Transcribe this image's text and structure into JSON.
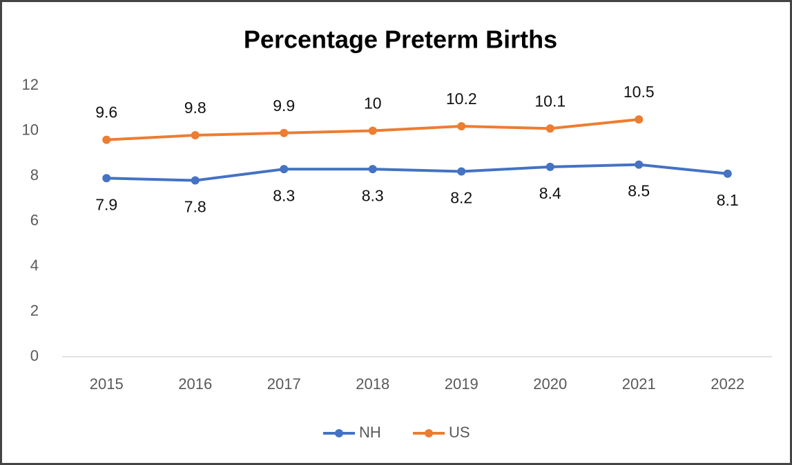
{
  "chart_data": {
    "type": "line",
    "title": "Percentage Preterm Births",
    "categories": [
      "2015",
      "2016",
      "2017",
      "2018",
      "2019",
      "2020",
      "2021",
      "2022"
    ],
    "series": [
      {
        "name": "NH",
        "color": "#4472c4",
        "values": [
          7.9,
          7.8,
          8.3,
          8.3,
          8.2,
          8.4,
          8.5,
          8.1
        ],
        "label_position": "below"
      },
      {
        "name": "US",
        "color": "#ed7d31",
        "values": [
          9.6,
          9.8,
          9.9,
          10,
          10.2,
          10.1,
          10.5,
          null
        ],
        "label_position": "above"
      }
    ],
    "ylim": [
      0,
      12
    ],
    "yticks": [
      0,
      2,
      4,
      6,
      8,
      10,
      12
    ],
    "grid": false,
    "legend": "bottom"
  }
}
